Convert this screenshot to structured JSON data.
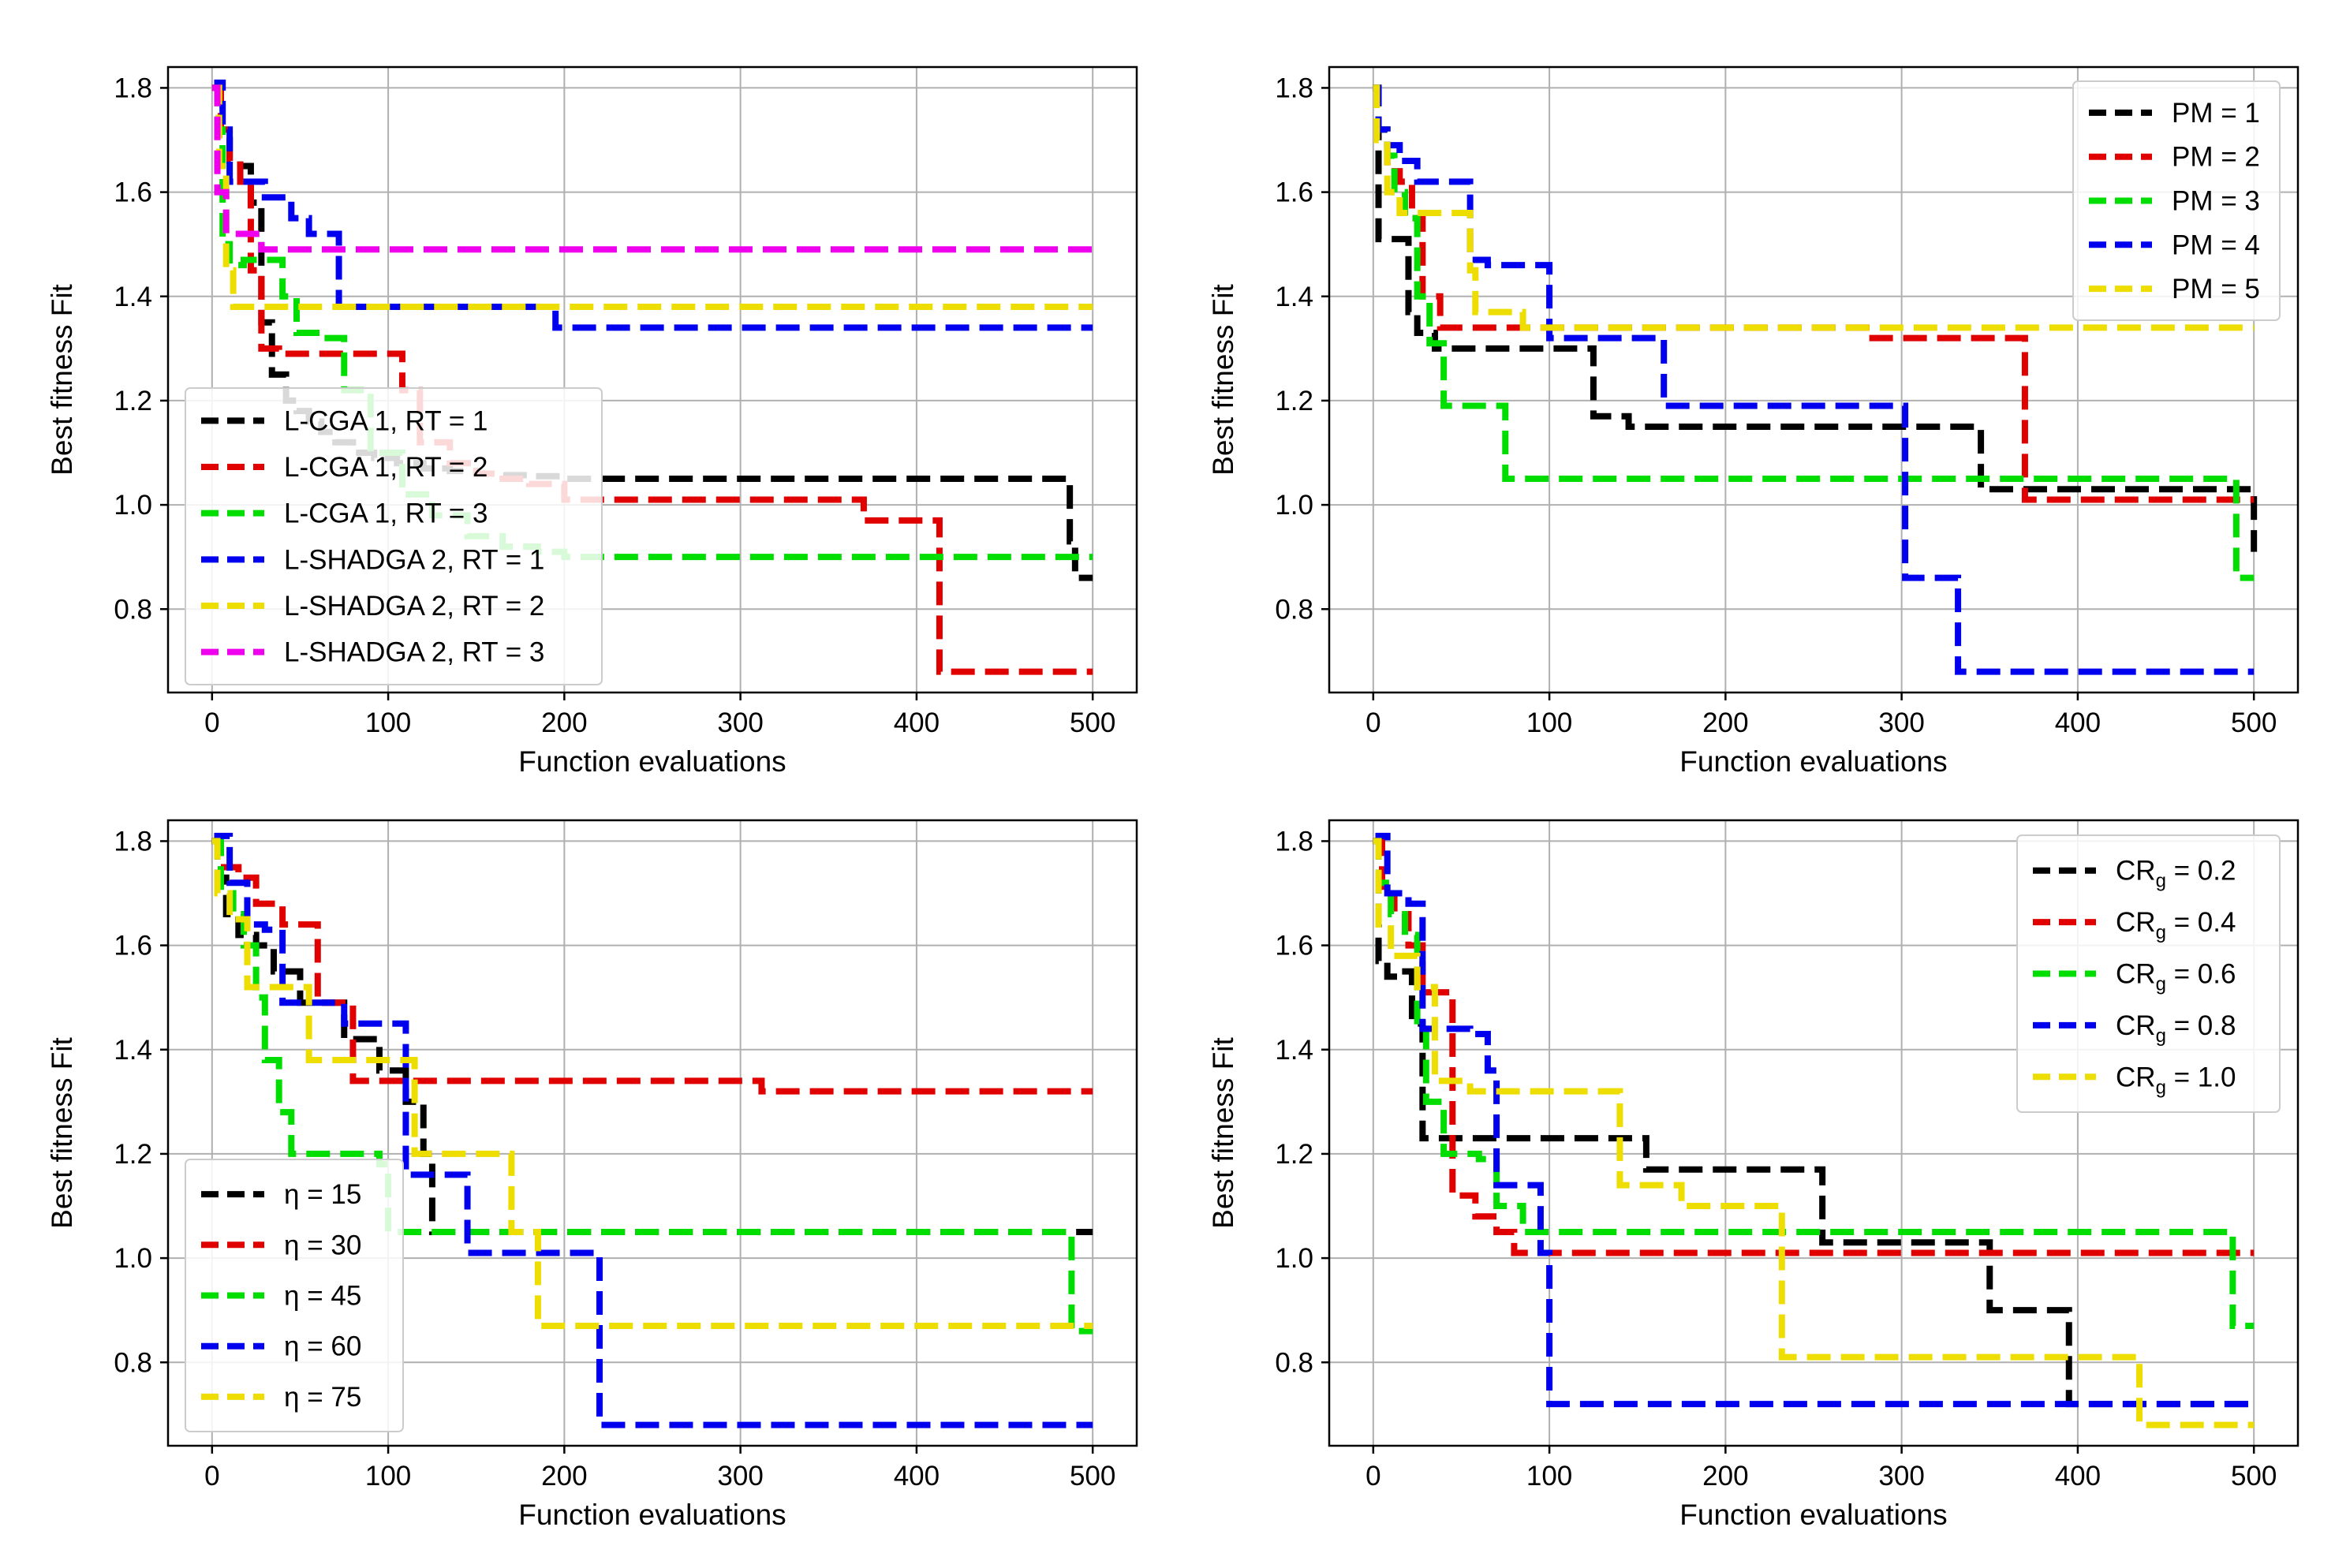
{
  "figure": {
    "rows": 2,
    "cols": 2
  },
  "chart_data": [
    {
      "type": "line",
      "step": true,
      "title": "",
      "xlabel": "Function evaluations",
      "ylabel": "Best fitness Fit",
      "xlim": [
        -25,
        525
      ],
      "ylim": [
        0.64,
        1.84
      ],
      "xticks": [
        0,
        100,
        200,
        300,
        400,
        500
      ],
      "yticks": [
        0.8,
        1.0,
        1.2,
        1.4,
        1.6,
        1.8
      ],
      "yticklabels": [
        "0.8",
        "1.0",
        "1.2",
        "1.4",
        "1.6",
        "1.8"
      ],
      "grid": true,
      "legend_position": "lower-left",
      "series": [
        {
          "name": "L-CGA 1, RT = 1",
          "label": "L-CGA 1, RT = 1",
          "color": "#000000",
          "x": [
            0,
            4,
            10,
            16,
            22,
            28,
            34,
            42,
            48,
            55,
            62,
            70,
            80,
            92,
            105,
            120,
            135,
            150,
            165,
            180,
            200,
            487,
            490,
            500
          ],
          "y": [
            1.8,
            1.7,
            1.66,
            1.65,
            1.58,
            1.35,
            1.25,
            1.2,
            1.18,
            1.16,
            1.14,
            1.12,
            1.1,
            1.09,
            1.08,
            1.07,
            1.065,
            1.06,
            1.057,
            1.055,
            1.05,
            0.93,
            0.86,
            0.86
          ]
        },
        {
          "name": "L-CGA 1, RT = 2",
          "label": "L-CGA 1, RT = 2",
          "color": "#e00000",
          "x": [
            0,
            5,
            10,
            16,
            22,
            28,
            38,
            50,
            62,
            75,
            90,
            108,
            118,
            135,
            150,
            165,
            180,
            200,
            365,
            370,
            410,
            413,
            500
          ],
          "y": [
            1.8,
            1.72,
            1.66,
            1.62,
            1.45,
            1.3,
            1.29,
            1.29,
            1.29,
            1.29,
            1.29,
            1.22,
            1.12,
            1.08,
            1.06,
            1.05,
            1.04,
            1.01,
            1.01,
            0.97,
            0.97,
            0.68,
            0.68
          ]
        },
        {
          "name": "L-CGA 1, RT = 3",
          "label": "L-CGA 1, RT = 3",
          "color": "#00dd00",
          "x": [
            0,
            3,
            6,
            10,
            18,
            40,
            48,
            62,
            75,
            90,
            108,
            125,
            145,
            165,
            185,
            200,
            500
          ],
          "y": [
            1.8,
            1.72,
            1.5,
            1.46,
            1.47,
            1.4,
            1.33,
            1.32,
            1.22,
            1.1,
            1.02,
            0.98,
            0.94,
            0.92,
            0.91,
            0.9,
            0.9
          ]
        },
        {
          "name": "L-SHADGA 2, RT = 1",
          "label": "L-SHADGA 2, RT = 1",
          "color": "#0000ee",
          "x": [
            0,
            3,
            6,
            10,
            30,
            45,
            55,
            68,
            72,
            190,
            195,
            500
          ],
          "y": [
            1.8,
            1.81,
            1.72,
            1.62,
            1.59,
            1.55,
            1.52,
            1.52,
            1.38,
            1.38,
            1.34,
            1.34
          ]
        },
        {
          "name": "L-SHADGA 2, RT = 2",
          "label": "L-SHADGA 2, RT = 2",
          "color": "#eedd00",
          "x": [
            0,
            4,
            8,
            12,
            500
          ],
          "y": [
            1.8,
            1.65,
            1.45,
            1.38,
            1.38
          ]
        },
        {
          "name": "L-SHADGA 2, RT = 3",
          "label": "L-SHADGA 2, RT = 3",
          "color": "#ee00ee",
          "x": [
            0,
            3,
            8,
            28,
            500
          ],
          "y": [
            1.8,
            1.6,
            1.52,
            1.49,
            1.49
          ]
        }
      ]
    },
    {
      "type": "line",
      "step": true,
      "title": "",
      "xlabel": "Function evaluations",
      "ylabel": "Best fitness Fit",
      "xlim": [
        -25,
        525
      ],
      "ylim": [
        0.64,
        1.84
      ],
      "xticks": [
        0,
        100,
        200,
        300,
        400,
        500
      ],
      "yticks": [
        0.8,
        1.0,
        1.2,
        1.4,
        1.6,
        1.8
      ],
      "yticklabels": [
        "0.8",
        "1.0",
        "1.2",
        "1.4",
        "1.6",
        "1.8"
      ],
      "grid": true,
      "legend_position": "top-right",
      "series": [
        {
          "name": "PM = 1",
          "label": "PM = 1",
          "color": "#000000",
          "x": [
            0,
            3,
            15,
            20,
            25,
            35,
            120,
            125,
            145,
            340,
            345,
            500
          ],
          "y": [
            1.8,
            1.51,
            1.51,
            1.37,
            1.33,
            1.3,
            1.3,
            1.17,
            1.15,
            1.15,
            1.03,
            0.91
          ]
        },
        {
          "name": "PM = 2",
          "label": "PM = 2",
          "color": "#e00000",
          "x": [
            0,
            3,
            8,
            15,
            22,
            28,
            38,
            275,
            280,
            365,
            370,
            500
          ],
          "y": [
            1.8,
            1.72,
            1.64,
            1.62,
            1.55,
            1.4,
            1.34,
            1.34,
            1.32,
            1.32,
            1.01,
            1.01
          ]
        },
        {
          "name": "PM = 3",
          "label": "PM = 3",
          "color": "#00dd00",
          "x": [
            0,
            3,
            8,
            12,
            18,
            25,
            32,
            40,
            70,
            75,
            485,
            490,
            500
          ],
          "y": [
            1.8,
            1.72,
            1.67,
            1.6,
            1.55,
            1.4,
            1.31,
            1.19,
            1.19,
            1.05,
            1.05,
            0.86,
            0.86
          ]
        },
        {
          "name": "PM = 4",
          "label": "PM = 4",
          "color": "#0000ee",
          "x": [
            0,
            3,
            8,
            15,
            25,
            40,
            55,
            65,
            85,
            100,
            160,
            165,
            300,
            302,
            328,
            332,
            500
          ],
          "y": [
            1.8,
            1.72,
            1.69,
            1.66,
            1.62,
            1.62,
            1.47,
            1.46,
            1.46,
            1.32,
            1.32,
            1.19,
            1.19,
            0.86,
            0.86,
            0.68,
            0.68
          ]
        },
        {
          "name": "PM = 5",
          "label": "PM = 5",
          "color": "#eedd00",
          "x": [
            0,
            2,
            8,
            15,
            30,
            55,
            58,
            85,
            500
          ],
          "y": [
            1.8,
            1.7,
            1.6,
            1.56,
            1.56,
            1.45,
            1.37,
            1.34,
            1.34
          ]
        }
      ]
    },
    {
      "type": "line",
      "step": true,
      "title": "",
      "xlabel": "Function evaluations",
      "ylabel": "Best fitness Fit",
      "xlim": [
        -25,
        525
      ],
      "ylim": [
        0.64,
        1.84
      ],
      "xticks": [
        0,
        100,
        200,
        300,
        400,
        500
      ],
      "yticks": [
        0.8,
        1.0,
        1.2,
        1.4,
        1.6,
        1.8
      ],
      "yticklabels": [
        "0.8",
        "1.0",
        "1.2",
        "1.4",
        "1.6",
        "1.8"
      ],
      "grid": true,
      "legend_position": "lower-left",
      "series": [
        {
          "name": "η = 15",
          "label": "η = 15",
          "color": "#000000",
          "x": [
            0,
            3,
            8,
            15,
            25,
            35,
            50,
            75,
            95,
            110,
            120,
            125,
            200,
            500
          ],
          "y": [
            1.8,
            1.73,
            1.66,
            1.62,
            1.6,
            1.55,
            1.49,
            1.42,
            1.36,
            1.3,
            1.2,
            1.05,
            1.05,
            1.05
          ]
        },
        {
          "name": "η = 30",
          "label": "η = 30",
          "color": "#e00000",
          "x": [
            0,
            5,
            15,
            25,
            40,
            60,
            75,
            80,
            305,
            312,
            500
          ],
          "y": [
            1.8,
            1.75,
            1.73,
            1.68,
            1.64,
            1.49,
            1.49,
            1.34,
            1.34,
            1.32,
            1.32
          ]
        },
        {
          "name": "η = 45",
          "label": "η = 45",
          "color": "#00dd00",
          "x": [
            0,
            5,
            12,
            18,
            25,
            30,
            38,
            45,
            95,
            100,
            485,
            488,
            500
          ],
          "y": [
            1.8,
            1.7,
            1.66,
            1.6,
            1.5,
            1.38,
            1.28,
            1.2,
            1.18,
            1.05,
            1.05,
            0.86,
            0.86
          ]
        },
        {
          "name": "η = 60",
          "label": "η = 60",
          "color": "#0000ee",
          "x": [
            0,
            3,
            10,
            20,
            30,
            40,
            55,
            75,
            105,
            110,
            140,
            145,
            215,
            220,
            500
          ],
          "y": [
            1.8,
            1.81,
            1.72,
            1.64,
            1.63,
            1.49,
            1.49,
            1.45,
            1.45,
            1.16,
            1.16,
            1.01,
            1.01,
            0.68,
            0.68
          ]
        },
        {
          "name": "η = 75",
          "label": "η = 75",
          "color": "#eedd00",
          "x": [
            0,
            3,
            10,
            20,
            35,
            55,
            75,
            100,
            115,
            165,
            170,
            185,
            195,
            500
          ],
          "y": [
            1.8,
            1.7,
            1.65,
            1.52,
            1.52,
            1.38,
            1.38,
            1.38,
            1.2,
            1.2,
            1.05,
            0.87,
            0.87,
            0.87
          ]
        }
      ]
    },
    {
      "type": "line",
      "step": true,
      "title": "",
      "xlabel": "Function evaluations",
      "ylabel": "Best fitness Fit",
      "xlim": [
        -25,
        525
      ],
      "ylim": [
        0.64,
        1.84
      ],
      "xticks": [
        0,
        100,
        200,
        300,
        400,
        500
      ],
      "yticks": [
        0.8,
        1.0,
        1.2,
        1.4,
        1.6,
        1.8
      ],
      "yticklabels": [
        "0.8",
        "1.0",
        "1.2",
        "1.4",
        "1.6",
        "1.8"
      ],
      "grid": true,
      "legend_position": "top-right",
      "series": [
        {
          "name": "CRg = 0.2",
          "label": "CR",
          "sub": "g",
          "suffix": " = 0.2",
          "color": "#000000",
          "x": [
            0,
            3,
            8,
            15,
            22,
            28,
            35,
            150,
            155,
            250,
            255,
            345,
            350,
            390,
            395,
            500
          ],
          "y": [
            1.8,
            1.57,
            1.54,
            1.55,
            1.45,
            1.23,
            1.23,
            1.23,
            1.17,
            1.17,
            1.03,
            1.03,
            0.9,
            0.9,
            0.72,
            0.72
          ]
        },
        {
          "name": "CRg = 0.4",
          "label": "CR",
          "sub": "g",
          "suffix": " = 0.4",
          "color": "#e00000",
          "x": [
            0,
            5,
            12,
            20,
            28,
            35,
            45,
            58,
            70,
            80,
            500
          ],
          "y": [
            1.8,
            1.7,
            1.66,
            1.6,
            1.51,
            1.51,
            1.12,
            1.08,
            1.05,
            1.01,
            1.01
          ]
        },
        {
          "name": "CRg = 0.6",
          "label": "CR",
          "sub": "g",
          "suffix": " = 0.6",
          "color": "#00dd00",
          "x": [
            0,
            3,
            10,
            18,
            25,
            30,
            40,
            60,
            70,
            85,
            485,
            488,
            500
          ],
          "y": [
            1.8,
            1.72,
            1.66,
            1.62,
            1.44,
            1.3,
            1.2,
            1.19,
            1.1,
            1.05,
            1.05,
            0.87,
            0.87
          ]
        },
        {
          "name": "CRg = 0.8",
          "label": "CR",
          "sub": "g",
          "suffix": " = 0.8",
          "color": "#0000ee",
          "x": [
            0,
            3,
            8,
            20,
            28,
            40,
            55,
            65,
            70,
            80,
            95,
            100,
            500
          ],
          "y": [
            1.8,
            1.81,
            1.7,
            1.68,
            1.44,
            1.44,
            1.43,
            1.36,
            1.14,
            1.14,
            1.01,
            0.72,
            0.72
          ]
        },
        {
          "name": "CRg = 1.0",
          "label": "CR",
          "sub": "g",
          "suffix": " = 1.0",
          "color": "#eedd00",
          "x": [
            0,
            3,
            10,
            25,
            35,
            45,
            55,
            135,
            140,
            165,
            175,
            228,
            232,
            430,
            435,
            500
          ],
          "y": [
            1.8,
            1.64,
            1.58,
            1.52,
            1.34,
            1.34,
            1.32,
            1.32,
            1.14,
            1.14,
            1.1,
            1.1,
            0.81,
            0.81,
            0.68,
            0.68
          ]
        }
      ]
    }
  ]
}
